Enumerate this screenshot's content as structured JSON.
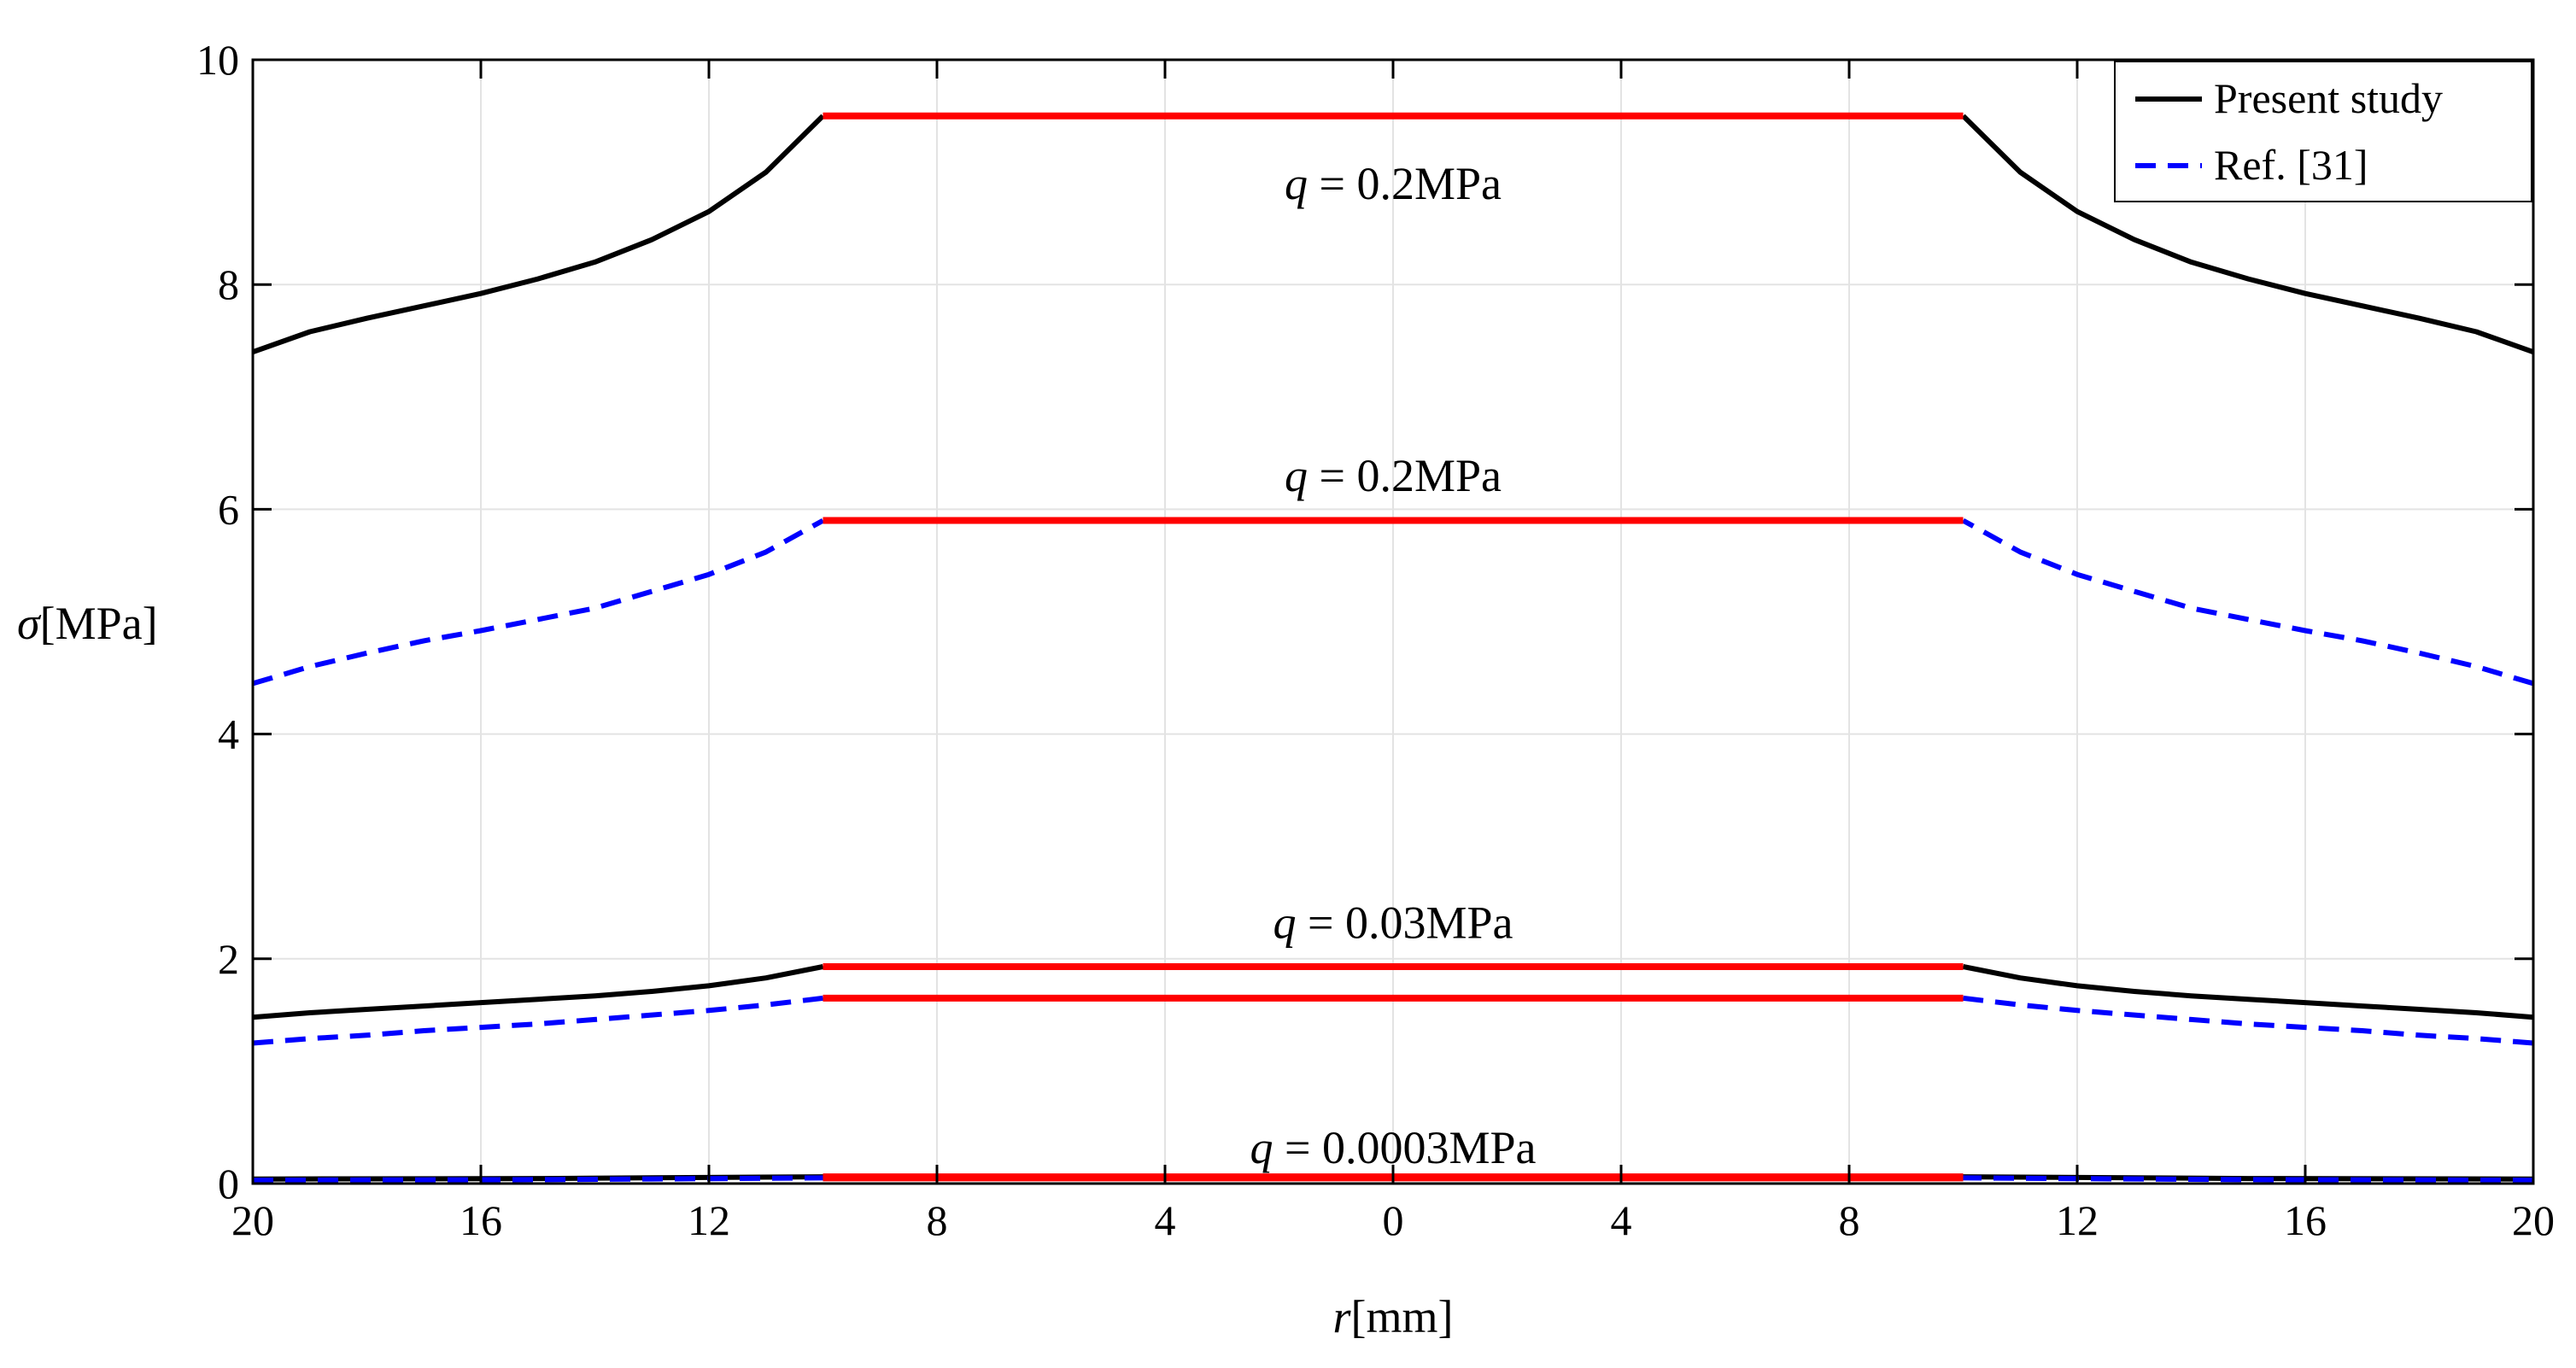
{
  "chart_data": {
    "type": "line",
    "title": "",
    "xlabel": {
      "sym": "r",
      "unit": "[mm]"
    },
    "ylabel": {
      "sym": "σ",
      "unit": "[MPa]"
    },
    "xlim": [
      -20,
      20
    ],
    "ylim": [
      0,
      10
    ],
    "x_ticks": [
      -20,
      -16,
      -12,
      -8,
      -4,
      0,
      4,
      8,
      12,
      16,
      20
    ],
    "x_tick_labels": [
      "20",
      "16",
      "12",
      "8",
      "4",
      "0",
      "4",
      "8",
      "12",
      "16",
      "20"
    ],
    "y_ticks": [
      0,
      2,
      4,
      6,
      8,
      10
    ],
    "y_tick_labels": [
      "0",
      "2",
      "4",
      "6",
      "8",
      "10"
    ],
    "grid": true,
    "legend": {
      "position": "top-right",
      "entries": [
        {
          "label": "Present study",
          "color": "#000000",
          "style": "solid"
        },
        {
          "label": "Ref. [31]",
          "color": "#0000ff",
          "style": "dashed"
        }
      ]
    },
    "series": [
      {
        "name": "Present study",
        "load": "q = 0.2MPa",
        "color": "#000000",
        "style": "solid",
        "x": [
          -20,
          -19,
          -18,
          -17,
          -16,
          -15,
          -14,
          -13,
          -12,
          -11,
          -10
        ],
        "y": [
          7.4,
          7.58,
          7.7,
          7.81,
          7.92,
          8.05,
          8.2,
          8.4,
          8.65,
          9.0,
          9.5
        ],
        "plateau": 9.5
      },
      {
        "name": "Ref. [31]",
        "load": "q = 0.2MPa",
        "color": "#0000ff",
        "style": "dashed",
        "x": [
          -20,
          -19,
          -18,
          -17,
          -16,
          -15,
          -14,
          -13,
          -12,
          -11,
          -10
        ],
        "y": [
          4.45,
          4.6,
          4.72,
          4.83,
          4.92,
          5.02,
          5.12,
          5.27,
          5.42,
          5.62,
          5.9
        ],
        "plateau": 5.9
      },
      {
        "name": "Present study",
        "load": "q = 0.03MPa",
        "color": "#000000",
        "style": "solid",
        "x": [
          -20,
          -19,
          -18,
          -17,
          -16,
          -15,
          -14,
          -13,
          -12,
          -11,
          -10
        ],
        "y": [
          1.48,
          1.52,
          1.55,
          1.58,
          1.61,
          1.64,
          1.67,
          1.71,
          1.76,
          1.83,
          1.93
        ],
        "plateau": 1.93
      },
      {
        "name": "Ref. [31]",
        "load": "q = 0.03MPa",
        "color": "#0000ff",
        "style": "dashed",
        "x": [
          -20,
          -19,
          -18,
          -17,
          -16,
          -15,
          -14,
          -13,
          -12,
          -11,
          -10
        ],
        "y": [
          1.25,
          1.29,
          1.32,
          1.36,
          1.39,
          1.42,
          1.46,
          1.5,
          1.54,
          1.59,
          1.65
        ],
        "plateau": 1.65
      },
      {
        "name": "Present study",
        "load": "q = 0.0003MPa",
        "color": "#000000",
        "style": "solid",
        "x": [
          -20,
          -15,
          -10
        ],
        "y": [
          0.04,
          0.045,
          0.06
        ],
        "plateau": 0.06
      },
      {
        "name": "Ref. [31]",
        "load": "q = 0.0003MPa",
        "color": "#0000ff",
        "style": "dashed",
        "x": [
          -20,
          -15,
          -10
        ],
        "y": [
          0.03,
          0.035,
          0.05
        ],
        "plateau": 0.05
      }
    ],
    "plateau_color": "#ff0000",
    "plateau_range": [
      -10,
      10
    ],
    "annotations": [
      {
        "sym": "q",
        "text": "= 0.2MPa",
        "x": 0,
        "y": 8.9
      },
      {
        "sym": "q",
        "text": "= 0.2MPa",
        "x": 0,
        "y": 6.3
      },
      {
        "sym": "q",
        "text": "= 0.03MPa",
        "x": 0,
        "y": 2.32
      },
      {
        "sym": "q",
        "text": "= 0.0003MPa",
        "x": 0,
        "y": 0.32
      }
    ]
  }
}
